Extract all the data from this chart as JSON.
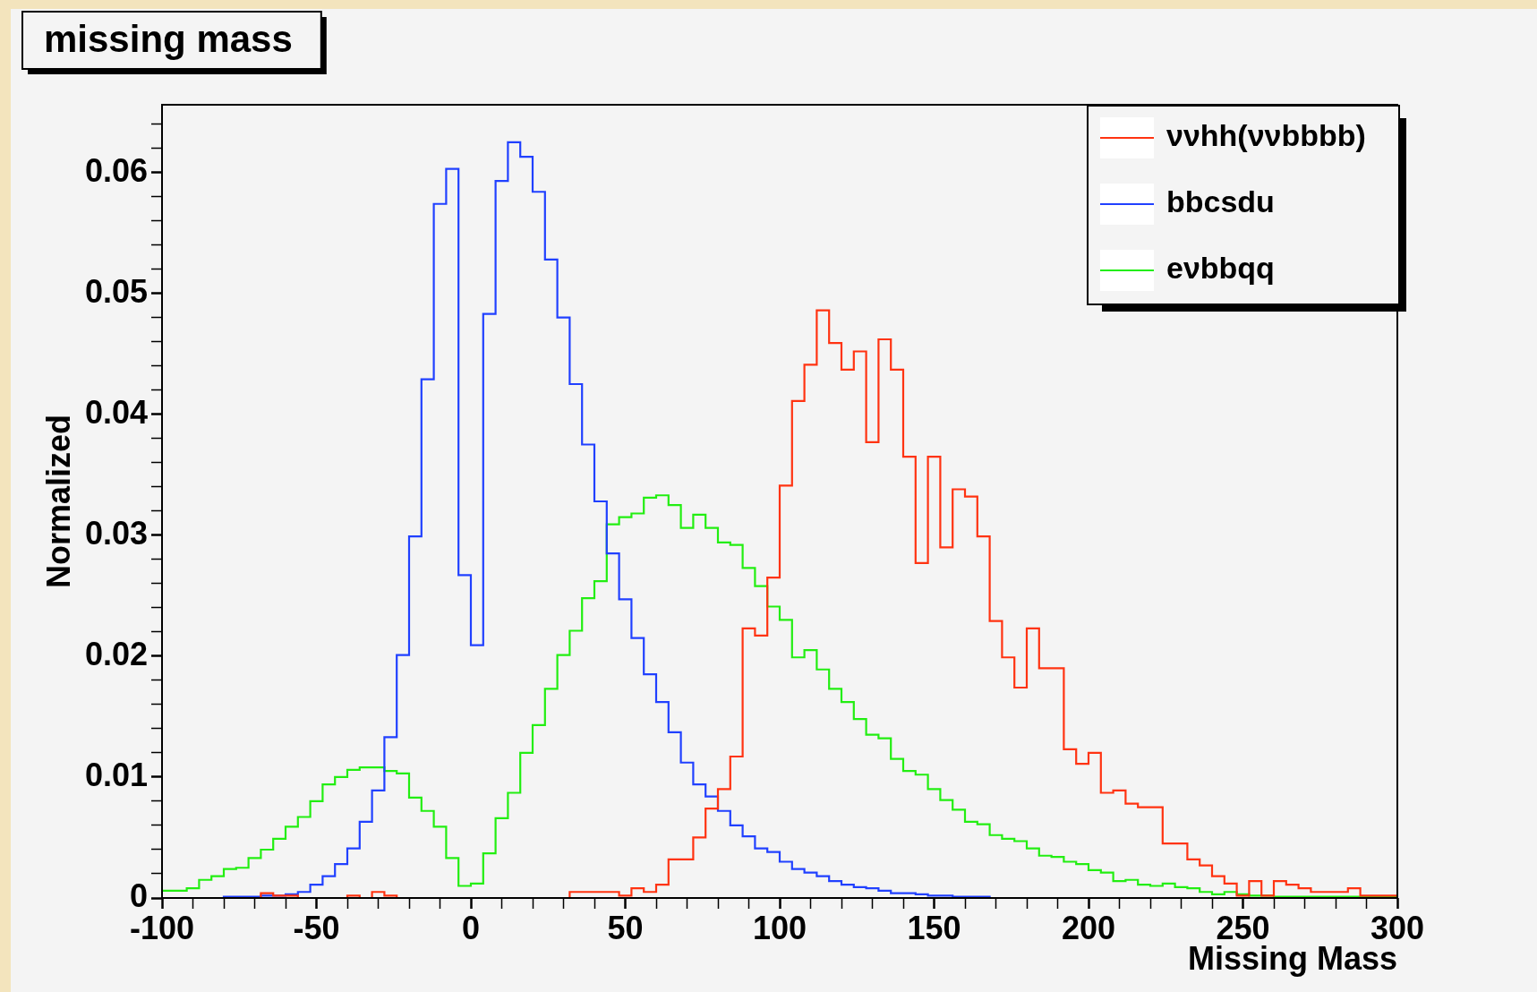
{
  "chart_data": {
    "type": "histogram",
    "title": "missing mass",
    "xlabel": "Missing Mass",
    "ylabel": "Normalized",
    "bins": [
      -100,
      -96,
      -92,
      -88,
      -84,
      -80,
      -76,
      -72,
      -68,
      -64,
      -60,
      -56,
      -52,
      -48,
      -44,
      -40,
      -36,
      -32,
      -28,
      -24,
      -20,
      -16,
      -12,
      -8,
      -4,
      0,
      4,
      8,
      12,
      16,
      20,
      24,
      28,
      32,
      36,
      40,
      44,
      48,
      52,
      56,
      60,
      64,
      68,
      72,
      76,
      80,
      84,
      88,
      92,
      96,
      100,
      104,
      108,
      112,
      116,
      120,
      124,
      128,
      132,
      136,
      140,
      144,
      148,
      152,
      156,
      160,
      164,
      168,
      172,
      176,
      180,
      184,
      188,
      192,
      196,
      200,
      204,
      208,
      212,
      216,
      220,
      224,
      228,
      232,
      236,
      240,
      244,
      248,
      252,
      256,
      260,
      264,
      268,
      272,
      276,
      280,
      284,
      288,
      292,
      296,
      300
    ],
    "series": [
      {
        "name": "ννhh(ννbbbb)",
        "color": "#ff3311",
        "values": [
          0,
          0,
          0,
          0,
          0,
          0,
          0,
          0,
          0.0004,
          0.0002,
          0.0002,
          0,
          0,
          0,
          0,
          0.0002,
          0,
          0.0005,
          0.0002,
          0,
          0,
          0,
          0,
          0,
          0,
          0,
          0,
          0,
          0,
          0,
          0,
          0,
          0,
          0.0005,
          0.0005,
          0.0005,
          0.0005,
          0.0002,
          0.0008,
          0.0005,
          0.0011,
          0.0032,
          0.0032,
          0.005,
          0.0074,
          0.009,
          0.0117,
          0.0223,
          0.0217,
          0.0265,
          0.0341,
          0.0411,
          0.0441,
          0.0486,
          0.0459,
          0.0437,
          0.0452,
          0.0377,
          0.0462,
          0.0437,
          0.0365,
          0.0277,
          0.0365,
          0.029,
          0.0338,
          0.0332,
          0.0299,
          0.0229,
          0.0199,
          0.0174,
          0.0223,
          0.019,
          0.019,
          0.0123,
          0.0111,
          0.012,
          0.0087,
          0.0089,
          0.0078,
          0.0075,
          0.0075,
          0.0045,
          0.0045,
          0.0032,
          0.0027,
          0.0018,
          0.0012,
          0.0002,
          0.0014,
          0.0002,
          0.0014,
          0.0011,
          0.0008,
          0.0005,
          0.0005,
          0.0005,
          0.0008,
          0.0002,
          0.0002,
          0.0002
        ]
      },
      {
        "name": "bbcsdu",
        "color": "#2040ff",
        "values": [
          0,
          0,
          0,
          0,
          0,
          0.0001,
          0.0001,
          0.0001,
          0.0002,
          0.0002,
          0.0003,
          0.0005,
          0.0011,
          0.0018,
          0.0028,
          0.0041,
          0.0063,
          0.0089,
          0.0133,
          0.0201,
          0.0299,
          0.0429,
          0.0574,
          0.0603,
          0.0267,
          0.0209,
          0.0483,
          0.0593,
          0.0625,
          0.0613,
          0.0584,
          0.0528,
          0.048,
          0.0425,
          0.0375,
          0.0328,
          0.0285,
          0.0247,
          0.0215,
          0.0185,
          0.0162,
          0.0137,
          0.0112,
          0.0094,
          0.0084,
          0.0072,
          0.006,
          0.0051,
          0.0041,
          0.0038,
          0.003,
          0.0024,
          0.0021,
          0.0018,
          0.0014,
          0.0011,
          0.0009,
          0.0008,
          0.0006,
          0.0004,
          0.0004,
          0.0003,
          0.0002,
          0.0002,
          0.0001,
          0.0001,
          0.0001,
          0,
          0,
          0,
          0,
          0,
          0,
          0,
          0,
          0,
          0,
          0,
          0,
          0,
          0,
          0,
          0,
          0,
          0,
          0,
          0,
          0,
          0,
          0,
          0,
          0,
          0,
          0,
          0,
          0,
          0,
          0,
          0,
          0
        ]
      },
      {
        "name": "eνbbqq",
        "color": "#22ee11",
        "values": [
          0.0006,
          0.0006,
          0.0008,
          0.0015,
          0.0018,
          0.0024,
          0.0025,
          0.0033,
          0.004,
          0.0049,
          0.0059,
          0.0067,
          0.008,
          0.0094,
          0.01,
          0.0106,
          0.0108,
          0.0108,
          0.0105,
          0.0103,
          0.0083,
          0.0072,
          0.0059,
          0.0033,
          0.001,
          0.0012,
          0.0037,
          0.0066,
          0.0087,
          0.012,
          0.0143,
          0.0173,
          0.0201,
          0.0221,
          0.0248,
          0.0262,
          0.0309,
          0.0315,
          0.0318,
          0.0331,
          0.0333,
          0.0325,
          0.0306,
          0.0317,
          0.0306,
          0.0294,
          0.0292,
          0.0273,
          0.0258,
          0.0241,
          0.023,
          0.0199,
          0.0205,
          0.0189,
          0.0173,
          0.0162,
          0.0148,
          0.0135,
          0.0132,
          0.0115,
          0.0105,
          0.0102,
          0.009,
          0.0081,
          0.0073,
          0.0063,
          0.0061,
          0.0052,
          0.0049,
          0.0047,
          0.0041,
          0.0035,
          0.0034,
          0.003,
          0.0028,
          0.0023,
          0.0021,
          0.0014,
          0.0015,
          0.0011,
          0.001,
          0.0012,
          0.0009,
          0.0008,
          0.0005,
          0.0003,
          0.0005,
          0.0003,
          0.0002,
          0.0002,
          0.0001,
          0.0001,
          0.0001,
          0.0001,
          0.0001,
          0.0001,
          0.0001,
          0.0001,
          0.0001,
          0.0001
        ]
      }
    ],
    "xlim": [
      -100,
      300
    ],
    "xticks": [
      -100,
      {
        "value": -90,
        "label": null
      },
      {
        "value": -80,
        "label": null
      },
      {
        "value": -70,
        "label": null
      },
      {
        "value": -60,
        "label": null
      },
      -50,
      {
        "value": -40,
        "label": null
      },
      {
        "value": -30,
        "label": null
      },
      {
        "value": -20,
        "label": null
      },
      {
        "value": -10,
        "label": null
      },
      0,
      {
        "value": 10,
        "label": null
      },
      {
        "value": 20,
        "label": null
      },
      {
        "value": 30,
        "label": null
      },
      {
        "value": 40,
        "label": null
      },
      50,
      {
        "value": 60,
        "label": null
      },
      {
        "value": 70,
        "label": null
      },
      {
        "value": 80,
        "label": null
      },
      {
        "value": 90,
        "label": null
      },
      100,
      {
        "value": 110,
        "label": null
      },
      {
        "value": 120,
        "label": null
      },
      {
        "value": 130,
        "label": null
      },
      {
        "value": 140,
        "label": null
      },
      150,
      {
        "value": 160,
        "label": null
      },
      {
        "value": 170,
        "label": null
      },
      {
        "value": 180,
        "label": null
      },
      {
        "value": 190,
        "label": null
      },
      200,
      {
        "value": 210,
        "label": null
      },
      {
        "value": 220,
        "label": null
      },
      {
        "value": 230,
        "label": null
      },
      {
        "value": 240,
        "label": null
      },
      250,
      {
        "value": 260,
        "label": null
      },
      {
        "value": 270,
        "label": null
      },
      {
        "value": 280,
        "label": null
      },
      {
        "value": 290,
        "label": null
      },
      300
    ],
    "ylim": [
      0,
      0.0656
    ],
    "yticks": [
      0,
      {
        "value": 0.002,
        "label": null
      },
      {
        "value": 0.004,
        "label": null
      },
      {
        "value": 0.006,
        "label": null
      },
      {
        "value": 0.008,
        "label": null
      },
      0.01,
      {
        "value": 0.012,
        "label": null
      },
      {
        "value": 0.014,
        "label": null
      },
      {
        "value": 0.016,
        "label": null
      },
      {
        "value": 0.018,
        "label": null
      },
      0.02,
      {
        "value": 0.022,
        "label": null
      },
      {
        "value": 0.024,
        "label": null
      },
      {
        "value": 0.026,
        "label": null
      },
      {
        "value": 0.028,
        "label": null
      },
      0.03,
      {
        "value": 0.032,
        "label": null
      },
      {
        "value": 0.034,
        "label": null
      },
      {
        "value": 0.036,
        "label": null
      },
      {
        "value": 0.038,
        "label": null
      },
      0.04,
      {
        "value": 0.042,
        "label": null
      },
      {
        "value": 0.044,
        "label": null
      },
      {
        "value": 0.046,
        "label": null
      },
      {
        "value": 0.048,
        "label": null
      },
      0.05,
      {
        "value": 0.052,
        "label": null
      },
      {
        "value": 0.054,
        "label": null
      },
      {
        "value": 0.056,
        "label": null
      },
      {
        "value": 0.058,
        "label": null
      },
      0.06,
      {
        "value": 0.062,
        "label": null
      },
      {
        "value": 0.064,
        "label": null
      }
    ],
    "legend": "top right"
  }
}
